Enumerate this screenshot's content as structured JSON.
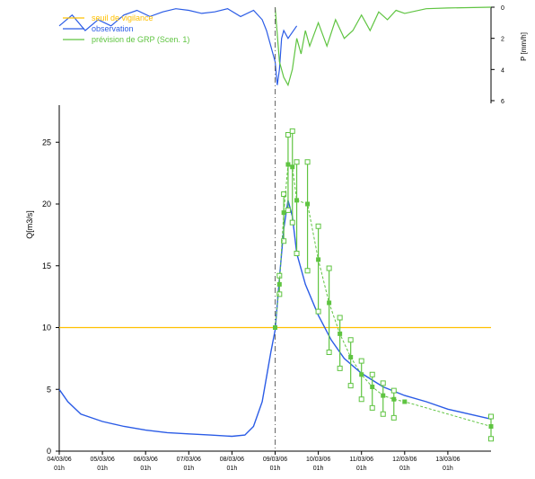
{
  "chart_data": [
    {
      "type": "line",
      "panel": "precipitation",
      "ylabel": "P [mm/h]",
      "y_inverted": true,
      "ylim": [
        0,
        6
      ],
      "yticks": [
        0,
        2,
        4,
        6
      ],
      "series": [
        {
          "name": "observation",
          "color": "#2b5ce6",
          "x": [
            0,
            0.03,
            0.06,
            0.09,
            0.12,
            0.15,
            0.18,
            0.21,
            0.24,
            0.27,
            0.3,
            0.33,
            0.36,
            0.39,
            0.42,
            0.45,
            0.47,
            0.48,
            0.49,
            0.5,
            0.505,
            0.51,
            0.515,
            0.52,
            0.53,
            0.55
          ],
          "values": [
            1.2,
            0.5,
            1.5,
            0.8,
            1.2,
            0.5,
            0.2,
            0.6,
            0.3,
            0.1,
            0.2,
            0.4,
            0.3,
            0.1,
            0.6,
            0.2,
            0.8,
            1.5,
            2.5,
            3.5,
            5.0,
            4.0,
            2.0,
            1.5,
            2.0,
            1.2
          ]
        },
        {
          "name": "prévision de GRP (Scen. 1)",
          "color": "#5fc441",
          "x": [
            0.5,
            0.51,
            0.52,
            0.53,
            0.54,
            0.55,
            0.56,
            0.57,
            0.58,
            0.6,
            0.62,
            0.64,
            0.66,
            0.68,
            0.7,
            0.72,
            0.74,
            0.76,
            0.78,
            0.8,
            0.85,
            0.9,
            1.0
          ],
          "values": [
            0,
            3.5,
            4.5,
            5.0,
            4.0,
            2.0,
            3.0,
            1.5,
            2.5,
            1.0,
            2.5,
            0.8,
            2.0,
            1.5,
            0.5,
            1.5,
            0.3,
            0.8,
            0.2,
            0.4,
            0.1,
            0.05,
            0
          ]
        }
      ]
    },
    {
      "type": "line",
      "panel": "discharge",
      "ylabel": "Q[m3/s]",
      "ylim": [
        0,
        28
      ],
      "yticks": [
        0,
        5,
        10,
        15,
        20,
        25
      ],
      "x_tick_labels": [
        [
          "04/03/06",
          "01h"
        ],
        [
          "05/03/06",
          "01h"
        ],
        [
          "06/03/06",
          "01h"
        ],
        [
          "07/03/06",
          "01h"
        ],
        [
          "08/03/06",
          "01h"
        ],
        [
          "09/03/06",
          "01h"
        ],
        [
          "10/03/06",
          "01h"
        ],
        [
          "11/03/06",
          "01h"
        ],
        [
          "12/03/06",
          "01h"
        ],
        [
          "13/03/06",
          "01h"
        ]
      ],
      "forecast_time_day": 5,
      "legend": {
        "placement": "top-left",
        "entries": [
          {
            "label": "seuil de vigilance",
            "color": "#ffc000"
          },
          {
            "label": "observation",
            "color": "#2b5ce6"
          },
          {
            "label": "prévision de GRP (Scen. 1)",
            "color": "#5fc441"
          }
        ]
      },
      "series": [
        {
          "name": "seuil de vigilance",
          "color": "#ffc000",
          "x": [
            0,
            10
          ],
          "values": [
            10,
            10
          ]
        },
        {
          "name": "observation",
          "color": "#2b5ce6",
          "x": [
            0,
            0.2,
            0.5,
            1.0,
            1.5,
            2.0,
            2.5,
            3.0,
            3.5,
            4.0,
            4.3,
            4.5,
            4.7,
            4.8,
            4.9,
            5.0,
            5.1,
            5.2,
            5.3,
            5.4,
            5.5,
            5.7,
            6.0,
            6.3,
            6.6,
            7.0,
            7.5,
            8.0,
            8.5,
            9.0,
            9.5,
            10.0
          ],
          "values": [
            5.0,
            4.0,
            3.0,
            2.4,
            2.0,
            1.7,
            1.5,
            1.4,
            1.3,
            1.2,
            1.3,
            2.0,
            4.0,
            6.0,
            8.0,
            9.8,
            14.0,
            18.0,
            20.3,
            19.0,
            16.0,
            13.5,
            11.0,
            9.0,
            7.5,
            6.3,
            5.2,
            4.5,
            4.0,
            3.4,
            3.0,
            2.6
          ]
        },
        {
          "name": "prévision de GRP (Scen. 1)",
          "color": "#5fc441",
          "median_x": [
            5.0,
            5.1,
            5.2,
            5.3,
            5.4,
            5.5,
            5.75,
            6.0,
            6.25,
            6.5,
            6.75,
            7.0,
            7.25,
            7.5,
            7.75,
            8.0,
            10.0
          ],
          "median": [
            10.0,
            13.5,
            19.3,
            23.2,
            23.0,
            20.3,
            20.0,
            15.5,
            12.0,
            9.5,
            7.6,
            6.2,
            5.2,
            4.5,
            4.2,
            4.0,
            2.0
          ],
          "bands": [
            {
              "x": 5.1,
              "lo": 12.7,
              "hi": 14.2
            },
            {
              "x": 5.2,
              "lo": 17.0,
              "hi": 20.8
            },
            {
              "x": 5.3,
              "lo": 19.5,
              "hi": 25.6
            },
            {
              "x": 5.4,
              "lo": 18.5,
              "hi": 25.9
            },
            {
              "x": 5.5,
              "lo": 16.0,
              "hi": 23.4
            },
            {
              "x": 5.75,
              "lo": 14.6,
              "hi": 23.4
            },
            {
              "x": 6.0,
              "lo": 11.3,
              "hi": 18.2
            },
            {
              "x": 6.25,
              "lo": 8.0,
              "hi": 14.8
            },
            {
              "x": 6.5,
              "lo": 6.7,
              "hi": 10.8
            },
            {
              "x": 6.75,
              "lo": 5.3,
              "hi": 9.0
            },
            {
              "x": 7.0,
              "lo": 4.2,
              "hi": 7.3
            },
            {
              "x": 7.25,
              "lo": 3.5,
              "hi": 6.2
            },
            {
              "x": 7.5,
              "lo": 3.0,
              "hi": 5.5
            },
            {
              "x": 7.75,
              "lo": 2.7,
              "hi": 4.9
            },
            {
              "x": 10.0,
              "lo": 1.0,
              "hi": 2.8
            }
          ]
        }
      ]
    }
  ]
}
